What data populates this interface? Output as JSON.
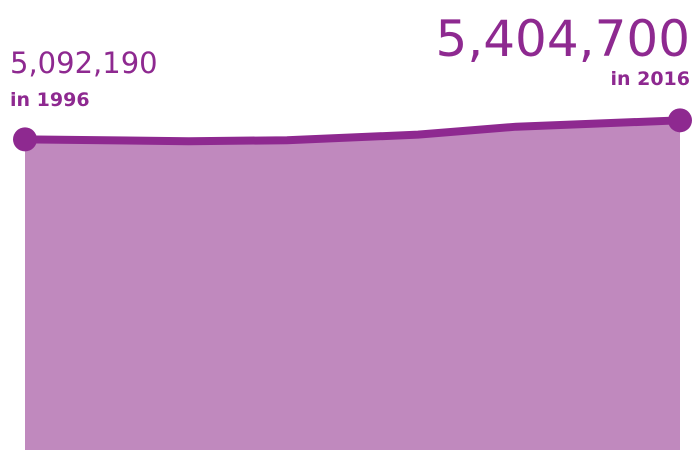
{
  "chart_data": {
    "type": "area",
    "x": [
      1996,
      2001,
      2004,
      2008,
      2011,
      2016
    ],
    "values": [
      5092190,
      5062000,
      5078000,
      5170000,
      5300000,
      5404700
    ],
    "value_labels": [
      "5,092,190",
      null,
      null,
      null,
      null,
      "5,404,700"
    ],
    "annotations": [
      "in 1996",
      "in 2016"
    ],
    "xlim": [
      1996,
      2016
    ],
    "ylim": [
      0,
      6000000
    ],
    "line_color": "#8e2990",
    "area_color": "#c089be"
  }
}
